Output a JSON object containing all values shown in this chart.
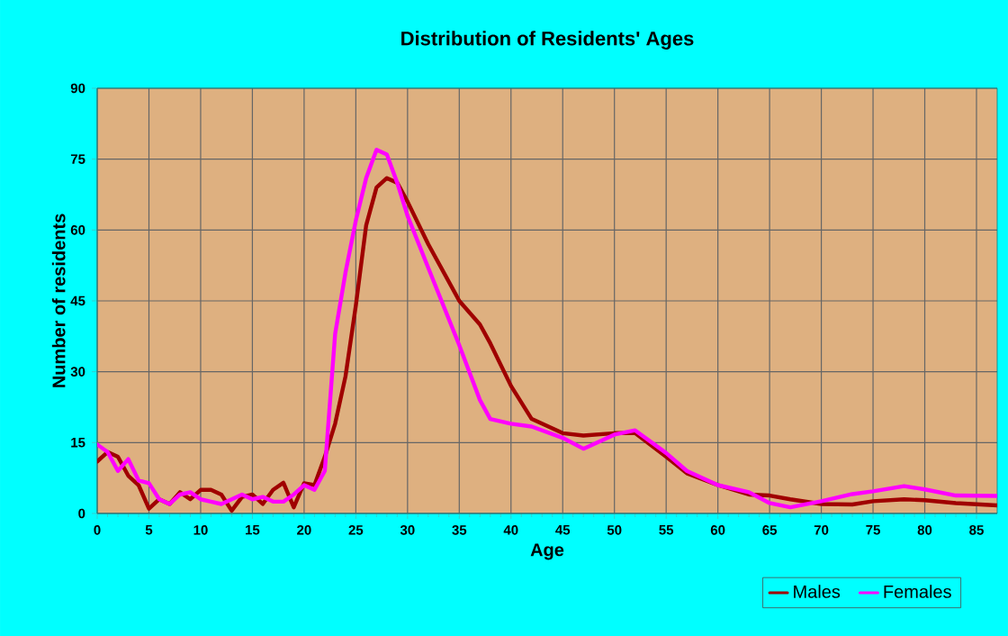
{
  "chart_data": {
    "type": "line",
    "title": "Distribution of Residents' Ages",
    "xlabel": "Age",
    "ylabel": "Number of residents",
    "x": [
      0,
      1,
      2,
      3,
      4,
      5,
      6,
      7,
      8,
      9,
      10,
      11,
      12,
      13,
      14,
      15,
      16,
      17,
      18,
      19,
      20,
      21,
      22,
      23,
      24,
      25,
      26,
      27,
      28,
      29,
      30,
      32,
      35,
      37,
      38,
      40,
      42,
      45,
      47,
      50,
      52,
      55,
      57,
      60,
      63,
      65,
      67,
      70,
      73,
      75,
      78,
      80,
      83,
      87
    ],
    "series": [
      {
        "name": "Males",
        "color": "#a00000",
        "values": [
          11,
          13,
          12,
          8,
          6,
          1,
          3,
          2,
          4.5,
          3,
          5,
          5,
          4,
          0.6,
          3.5,
          4,
          2,
          5,
          6.5,
          1.3,
          6.4,
          6,
          12,
          19,
          29,
          44,
          61,
          69,
          71,
          70,
          66,
          57,
          45,
          40,
          36,
          27,
          20,
          17,
          16.5,
          17,
          17,
          12,
          8.5,
          6,
          4,
          3.8,
          3,
          2,
          1.9,
          2.6,
          3,
          2.8,
          2.2,
          1.7
        ]
      },
      {
        "name": "Females",
        "color": "#ff00ff",
        "values": [
          14.6,
          13,
          9,
          11.5,
          7,
          6.4,
          3,
          2,
          4,
          4.5,
          3,
          2.5,
          2,
          3,
          4,
          3,
          3.5,
          2.5,
          2.5,
          4,
          6,
          5,
          9,
          38,
          51,
          62,
          71,
          77,
          76,
          70,
          63,
          52,
          35.6,
          24,
          20,
          19,
          18.4,
          16,
          13.7,
          16.7,
          17.6,
          12.8,
          9,
          6,
          4.5,
          2.2,
          1.3,
          2.6,
          4.1,
          4.7,
          5.8,
          5.1,
          3.8,
          3.7
        ]
      }
    ],
    "xlim": [
      0,
      87
    ],
    "xticks": [
      0,
      5,
      10,
      15,
      20,
      25,
      30,
      35,
      40,
      45,
      50,
      55,
      60,
      65,
      70,
      75,
      80,
      85
    ],
    "ylim": [
      0,
      90
    ],
    "yticks": [
      0,
      15,
      30,
      45,
      60,
      75,
      90
    ],
    "grid": true,
    "legend": "bottom right",
    "marker": "none",
    "line_style": "solid"
  }
}
